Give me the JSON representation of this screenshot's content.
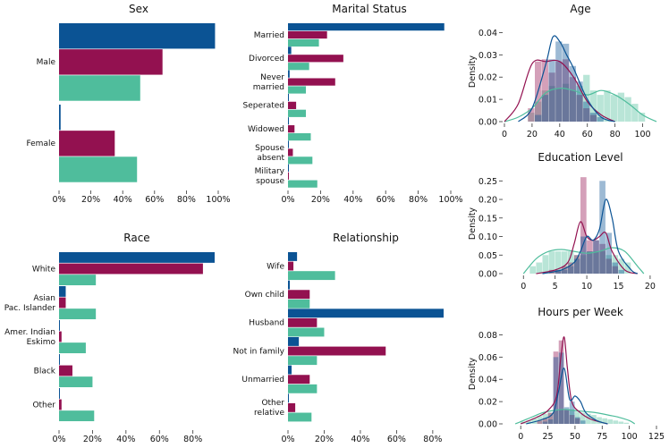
{
  "colors": {
    "blue": "#0b5394",
    "maroon": "#931150",
    "teal": "#4fbd9c"
  },
  "chart_data": [
    {
      "id": "sex",
      "type": "bar",
      "orientation": "horizontal",
      "title": "Sex",
      "categories": [
        "Male",
        "Female"
      ],
      "series": [
        {
          "name": "blue",
          "values": [
            98,
            1
          ]
        },
        {
          "name": "maroon",
          "values": [
            65,
            35
          ]
        },
        {
          "name": "teal",
          "values": [
            51,
            49
          ]
        }
      ],
      "xlim": [
        0,
        100
      ],
      "xticks": [
        0,
        20,
        40,
        60,
        80,
        100
      ],
      "xtick_labels": [
        "0%",
        "20%",
        "40%",
        "60%",
        "80%",
        "100%"
      ]
    },
    {
      "id": "marital",
      "type": "bar",
      "orientation": "horizontal",
      "title": "Marital Status",
      "categories": [
        "Married",
        "Divorced",
        "Never\nmarried",
        "Seperated",
        "Widowed",
        "Spouse\nabsent",
        "Military\nspouse"
      ],
      "series": [
        {
          "name": "blue",
          "values": [
            96,
            2,
            1,
            0.3,
            0.5,
            0.5,
            0.5
          ]
        },
        {
          "name": "maroon",
          "values": [
            24,
            34,
            29,
            5,
            4,
            3,
            0.4
          ]
        },
        {
          "name": "teal",
          "values": [
            19,
            13,
            11,
            11,
            14,
            15,
            18
          ]
        }
      ],
      "xlim": [
        0,
        100
      ],
      "xticks": [
        0,
        20,
        40,
        60,
        80,
        100
      ],
      "xtick_labels": [
        "0%",
        "20%",
        "40%",
        "60%",
        "80%",
        "100%"
      ]
    },
    {
      "id": "race",
      "type": "bar",
      "orientation": "horizontal",
      "title": "Race",
      "categories": [
        "White",
        "Asian\nPac. Islander",
        "Amer. Indian\nEskimo",
        "Black",
        "Other"
      ],
      "series": [
        {
          "name": "blue",
          "values": [
            93,
            4,
            0.5,
            0.5,
            0.5
          ]
        },
        {
          "name": "maroon",
          "values": [
            86,
            4,
            1.5,
            8,
            1.5
          ]
        },
        {
          "name": "teal",
          "values": [
            22,
            22,
            16,
            20,
            21
          ]
        }
      ],
      "xlim": [
        0,
        93
      ],
      "xticks": [
        0,
        20,
        40,
        60,
        80
      ],
      "xtick_labels": [
        "0%",
        "20%",
        "40%",
        "60%",
        "80%"
      ]
    },
    {
      "id": "relationship",
      "type": "bar",
      "orientation": "horizontal",
      "title": "Relationship",
      "categories": [
        "Wife",
        "Own child",
        "Husband",
        "Not in family",
        "Unmarried",
        "Other\nrelative"
      ],
      "series": [
        {
          "name": "blue",
          "values": [
            5,
            1,
            86,
            6,
            2,
            0.5
          ]
        },
        {
          "name": "maroon",
          "values": [
            3,
            12,
            16,
            54,
            12,
            4
          ]
        },
        {
          "name": "teal",
          "values": [
            26,
            12,
            20,
            16,
            16,
            13
          ]
        }
      ],
      "xlim": [
        0,
        86
      ],
      "xticks": [
        0,
        20,
        40,
        60,
        80
      ],
      "xtick_labels": [
        "0%",
        "20%",
        "40%",
        "60%",
        "80%"
      ]
    },
    {
      "id": "age",
      "type": "area",
      "title": "Age",
      "ylabel": "Density",
      "xlim": [
        0,
        110
      ],
      "ylim": [
        0,
        0.045
      ],
      "xticks": [
        0,
        20,
        40,
        60,
        80,
        100
      ],
      "xtick_labels": [
        "0",
        "20",
        "40",
        "60",
        "80",
        "100"
      ],
      "yticks": [
        0,
        0.01,
        0.02,
        0.03,
        0.04
      ],
      "ytick_labels": [
        "0.00",
        "0.01",
        "0.02",
        "0.03",
        "0.04"
      ],
      "hist_bin_width": 5,
      "hist": {
        "teal": {
          "x0": 17,
          "values": [
            0.004,
            0.009,
            0.014,
            0.016,
            0.015,
            0.017,
            0.014,
            0.016,
            0.021,
            0.014,
            0.012,
            0.014,
            0.012,
            0.013,
            0.011,
            0.008,
            0.004
          ]
        },
        "maroon": {
          "x0": 17,
          "values": [
            0.006,
            0.027,
            0.028,
            0.022,
            0.027,
            0.028,
            0.02,
            0.012,
            0.006,
            0.003
          ]
        },
        "blue": {
          "x0": 22,
          "values": [
            0.003,
            0.012,
            0.028,
            0.036,
            0.035,
            0.025,
            0.018,
            0.009,
            0.004,
            0.002
          ]
        }
      },
      "kde": {
        "teal": {
          "x": [
            0,
            10,
            20,
            30,
            40,
            50,
            60,
            70,
            80,
            90,
            100,
            110
          ],
          "y": [
            0.0,
            0.002,
            0.006,
            0.013,
            0.015,
            0.014,
            0.012,
            0.014,
            0.012,
            0.008,
            0.003,
            0.0
          ]
        },
        "maroon": {
          "x": [
            0,
            10,
            20,
            30,
            40,
            50,
            60,
            70,
            80
          ],
          "y": [
            0.0,
            0.008,
            0.026,
            0.027,
            0.027,
            0.02,
            0.009,
            0.003,
            0.0
          ]
        },
        "blue": {
          "x": [
            10,
            20,
            30,
            35,
            40,
            45,
            50,
            60,
            70,
            80
          ],
          "y": [
            0.0,
            0.006,
            0.026,
            0.038,
            0.036,
            0.03,
            0.024,
            0.01,
            0.002,
            0.0
          ]
        }
      }
    },
    {
      "id": "education",
      "type": "area",
      "title": "Education Level",
      "ylabel": "Density",
      "xlim": [
        -3,
        21
      ],
      "ylim": [
        0,
        0.27
      ],
      "xticks": [
        0,
        5,
        10,
        15,
        20
      ],
      "xtick_labels": [
        "0",
        "5",
        "10",
        "15",
        "20"
      ],
      "yticks": [
        0,
        0.05,
        0.1,
        0.15,
        0.2,
        0.25
      ],
      "ytick_labels": [
        "0.00",
        "0.05",
        "0.10",
        "0.15",
        "0.20",
        "0.25"
      ],
      "hist_bin_width": 1,
      "hist": {
        "teal": {
          "x0": 1,
          "values": [
            0.02,
            0.03,
            0.05,
            0.06,
            0.06,
            0.06,
            0.06,
            0.05,
            0.05,
            0.06,
            0.06,
            0.06,
            0.05,
            0.05,
            0.04,
            0.03
          ]
        },
        "maroon": {
          "x0": 4,
          "values": [
            0.01,
            0.01,
            0.02,
            0.03,
            0.05,
            0.26,
            0.09,
            0.09,
            0.08,
            0.04,
            0.02
          ]
        },
        "blue": {
          "x0": 5,
          "values": [
            0.01,
            0.01,
            0.02,
            0.04,
            0.1,
            0.06,
            0.09,
            0.25,
            0.11,
            0.03,
            0.01
          ]
        }
      },
      "kde": {
        "teal": {
          "x": [
            0,
            2,
            4,
            6,
            8,
            10,
            12,
            14,
            16,
            18,
            19
          ],
          "y": [
            0.0,
            0.04,
            0.06,
            0.065,
            0.06,
            0.055,
            0.06,
            0.07,
            0.06,
            0.02,
            0.0
          ]
        },
        "maroon": {
          "x": [
            2,
            5,
            7,
            8,
            9,
            10,
            11,
            12,
            13,
            14,
            16,
            18
          ],
          "y": [
            0.0,
            0.01,
            0.03,
            0.08,
            0.14,
            0.1,
            0.09,
            0.1,
            0.11,
            0.06,
            0.01,
            0.0
          ]
        },
        "blue": {
          "x": [
            3,
            6,
            8,
            9,
            10,
            11,
            12,
            13,
            14,
            15,
            17,
            18
          ],
          "y": [
            0.0,
            0.01,
            0.03,
            0.06,
            0.1,
            0.09,
            0.12,
            0.2,
            0.15,
            0.06,
            0.01,
            0.0
          ]
        }
      }
    },
    {
      "id": "hours",
      "type": "area",
      "title": "Hours per Week",
      "ylabel": "Density",
      "xlim": [
        -15,
        125
      ],
      "ylim": [
        0,
        0.09
      ],
      "xticks": [
        0,
        25,
        50,
        75,
        100,
        125
      ],
      "xtick_labels": [
        "0",
        "25",
        "50",
        "75",
        "100",
        "125"
      ],
      "yticks": [
        0,
        0.02,
        0.04,
        0.06,
        0.08
      ],
      "ytick_labels": [
        "0.00",
        "0.02",
        "0.04",
        "0.06",
        "0.08"
      ],
      "hist_bin_width": 5,
      "hist": {
        "teal": {
          "x0": 0,
          "values": [
            0.002,
            0.003,
            0.005,
            0.007,
            0.009,
            0.01,
            0.012,
            0.013,
            0.012,
            0.013,
            0.011,
            0.01,
            0.009,
            0.008,
            0.006,
            0.005,
            0.004,
            0.003,
            0.002,
            0.001
          ]
        },
        "maroon": {
          "x0": 15,
          "values": [
            0.003,
            0.005,
            0.01,
            0.065,
            0.075,
            0.013,
            0.008,
            0.005
          ]
        },
        "blue": {
          "x0": 20,
          "values": [
            0.002,
            0.004,
            0.06,
            0.064,
            0.015,
            0.02,
            0.006,
            0.003
          ]
        }
      },
      "kde": {
        "teal": {
          "x": [
            -5,
            10,
            20,
            30,
            40,
            50,
            60,
            70,
            80,
            90,
            100,
            105
          ],
          "y": [
            0.0,
            0.006,
            0.01,
            0.012,
            0.013,
            0.012,
            0.011,
            0.01,
            0.008,
            0.006,
            0.003,
            0.0
          ]
        },
        "maroon": {
          "x": [
            0,
            15,
            25,
            33,
            37,
            40,
            43,
            47,
            55,
            65,
            80
          ],
          "y": [
            0.0,
            0.006,
            0.012,
            0.025,
            0.06,
            0.078,
            0.05,
            0.02,
            0.01,
            0.004,
            0.0
          ]
        },
        "blue": {
          "x": [
            5,
            20,
            30,
            35,
            40,
            45,
            50,
            55,
            60,
            70,
            80
          ],
          "y": [
            0.0,
            0.004,
            0.01,
            0.03,
            0.05,
            0.022,
            0.025,
            0.02,
            0.01,
            0.003,
            0.0
          ]
        }
      }
    }
  ]
}
